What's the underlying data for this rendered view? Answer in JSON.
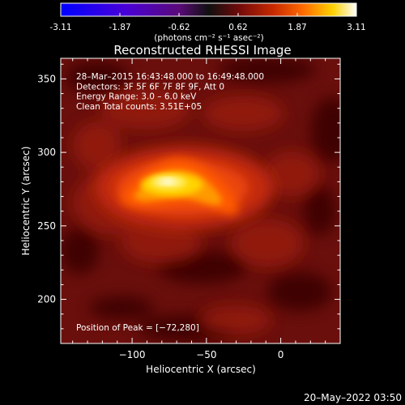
{
  "colorbar": {
    "tick_labels": [
      "-3.11",
      "-1.87",
      "-0.62",
      "0.62",
      "1.87",
      "3.11"
    ],
    "unit_label": "(photons cm⁻² s⁻¹ asec⁻²)",
    "stops": [
      {
        "pos": 0.0,
        "color": "#0000ff"
      },
      {
        "pos": 0.22,
        "color": "#4a00d8"
      },
      {
        "pos": 0.4,
        "color": "#5a0a78"
      },
      {
        "pos": 0.5,
        "color": "#101010"
      },
      {
        "pos": 0.6,
        "color": "#6e0a0a"
      },
      {
        "pos": 0.72,
        "color": "#c82a00"
      },
      {
        "pos": 0.82,
        "color": "#ff6a00"
      },
      {
        "pos": 0.92,
        "color": "#ffd200"
      },
      {
        "pos": 1.0,
        "color": "#ffffff"
      }
    ]
  },
  "plot": {
    "title": "Reconstructed RHESSI Image",
    "info_lines": [
      "28–Mar–2015 16:43:48.000 to 16:49:48.000",
      "Detectors: 3F 5F 6F 7F 8F 9F, Att 0",
      "Energy Range: 3.0 – 6.0 keV",
      "Clean    Total counts: 3.51E+05"
    ],
    "peak_label": "Position of Peak = [−72,280]",
    "xlabel": "Heliocentric X (arcsec)",
    "ylabel": "Heliocentric Y (arcsec)",
    "xlim": [
      -148,
      40
    ],
    "ylim": [
      170,
      364
    ],
    "xticks": [
      {
        "value": -100,
        "label": "−100"
      },
      {
        "value": -50,
        "label": "−50"
      },
      {
        "value": 0,
        "label": "0"
      }
    ],
    "yticks": [
      {
        "value": 200,
        "label": "200"
      },
      {
        "value": 250,
        "label": "250"
      },
      {
        "value": 300,
        "label": "300"
      },
      {
        "value": 350,
        "label": "350"
      }
    ],
    "background_color": "#6a0f0c",
    "peak": {
      "x": -72,
      "y": 280
    }
  },
  "footer": {
    "timestamp": "20–May–2022 03:50"
  }
}
